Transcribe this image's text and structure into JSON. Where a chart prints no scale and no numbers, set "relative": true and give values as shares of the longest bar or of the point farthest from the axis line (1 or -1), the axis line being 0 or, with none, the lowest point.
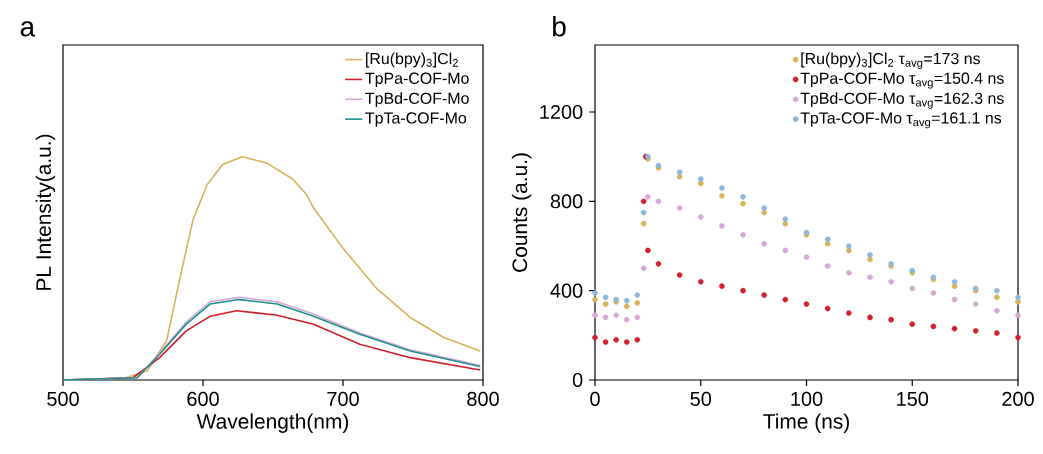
{
  "chart_data": [
    {
      "type": "line",
      "title": "a",
      "xlabel": "Wavelength(nm)",
      "ylabel": "PL Intensity(a.u.)",
      "relative": true,
      "xlim": [
        500,
        800
      ],
      "xticks": [
        500,
        600,
        700,
        800
      ],
      "legend": "top right",
      "marker": "none",
      "line_style": "solid",
      "grid": false,
      "series": [
        {
          "name": "[Ru(bpy)$_{3}$]Cl$_{2}$",
          "color": "#d9b25c",
          "x": [
            500,
            545,
            560,
            574,
            584,
            593,
            603,
            614,
            628,
            646,
            664,
            674,
            679,
            700,
            724,
            748,
            772,
            798
          ],
          "values": [
            0,
            0.01,
            0.04,
            0.175,
            0.47,
            0.72,
            0.875,
            0.965,
            1,
            0.97,
            0.9,
            0.83,
            0.77,
            0.59,
            0.41,
            0.28,
            0.19,
            0.13
          ]
        },
        {
          "name": "TpPa-COF-Mo",
          "color": "#d0202e",
          "x": [
            500,
            550,
            569,
            588,
            605,
            624,
            653,
            679,
            712,
            748,
            798
          ],
          "values": [
            0,
            0.01,
            0.1,
            0.22,
            0.285,
            0.31,
            0.29,
            0.25,
            0.16,
            0.1,
            0.045
          ]
        },
        {
          "name": "TpBd-COF-Mo",
          "color": "#d7a8d6",
          "x": [
            500,
            553,
            569,
            588,
            605,
            626,
            653,
            677,
            712,
            748,
            798
          ],
          "values": [
            0,
            0.01,
            0.12,
            0.26,
            0.35,
            0.37,
            0.35,
            0.3,
            0.21,
            0.135,
            0.065
          ]
        },
        {
          "name": "TpTa-COF-Mo",
          "color": "#1e8f8c",
          "x": [
            500,
            553,
            569,
            588,
            605,
            626,
            653,
            677,
            712,
            748,
            798
          ],
          "values": [
            0,
            0.01,
            0.115,
            0.25,
            0.34,
            0.36,
            0.34,
            0.29,
            0.205,
            0.13,
            0.06
          ]
        }
      ]
    },
    {
      "type": "scatter",
      "title": "b",
      "xlabel": "Time (ns)",
      "ylabel": "Counts (a.u.)",
      "xlim": [
        0,
        200
      ],
      "xticks": [
        0,
        50,
        100,
        150,
        200
      ],
      "ylim": [
        0,
        1500
      ],
      "yticks": [
        0,
        400,
        800,
        1200
      ],
      "legend": "top right",
      "marker": "circle",
      "grid": false,
      "series": [
        {
          "name": "[Ru(bpy)$_{3}$]Cl$_{2}$  τ$_{avg}$=173 ns",
          "color": "#d9b25c",
          "x": [
            0,
            5,
            10,
            15,
            20,
            23,
            25,
            30,
            40,
            50,
            60,
            70,
            80,
            90,
            100,
            110,
            120,
            130,
            140,
            150,
            160,
            170,
            180,
            190,
            200
          ],
          "values": [
            360,
            340,
            350,
            330,
            345,
            700,
            990,
            950,
            910,
            880,
            825,
            790,
            750,
            700,
            650,
            610,
            580,
            540,
            510,
            480,
            450,
            420,
            400,
            370,
            350
          ]
        },
        {
          "name": "TpPa-COF-Mo τ$_{avg}$=150.4 ns",
          "color": "#d0202e",
          "x": [
            0,
            5,
            10,
            15,
            20,
            23,
            24,
            25,
            30,
            40,
            50,
            60,
            70,
            80,
            90,
            100,
            110,
            120,
            130,
            140,
            150,
            160,
            170,
            180,
            190,
            200
          ],
          "values": [
            190,
            170,
            180,
            170,
            180,
            800,
            1000,
            580,
            520,
            470,
            440,
            420,
            400,
            380,
            360,
            340,
            320,
            300,
            280,
            270,
            250,
            240,
            230,
            220,
            210,
            190
          ]
        },
        {
          "name": "TpBd-COF-Mo τ$_{avg}$=162.3 ns",
          "color": "#d7a8d6",
          "x": [
            0,
            5,
            10,
            15,
            20,
            23,
            25,
            30,
            40,
            50,
            60,
            70,
            80,
            90,
            100,
            110,
            120,
            130,
            140,
            150,
            160,
            170,
            180,
            190,
            200
          ],
          "values": [
            290,
            280,
            290,
            270,
            280,
            500,
            820,
            800,
            770,
            730,
            690,
            650,
            610,
            580,
            550,
            510,
            480,
            460,
            440,
            410,
            390,
            360,
            340,
            310,
            290
          ]
        },
        {
          "name": "TpTa-COF-Mo τ$_{avg}$=161.1 ns",
          "color": "#8fb8d8",
          "x": [
            0,
            5,
            10,
            15,
            20,
            23,
            25,
            30,
            40,
            50,
            60,
            70,
            80,
            90,
            100,
            110,
            120,
            130,
            140,
            150,
            160,
            170,
            180,
            190,
            200
          ],
          "values": [
            390,
            370,
            360,
            355,
            380,
            750,
            1000,
            960,
            930,
            900,
            860,
            820,
            770,
            720,
            660,
            630,
            600,
            560,
            520,
            490,
            460,
            440,
            410,
            400,
            370
          ]
        }
      ]
    }
  ]
}
